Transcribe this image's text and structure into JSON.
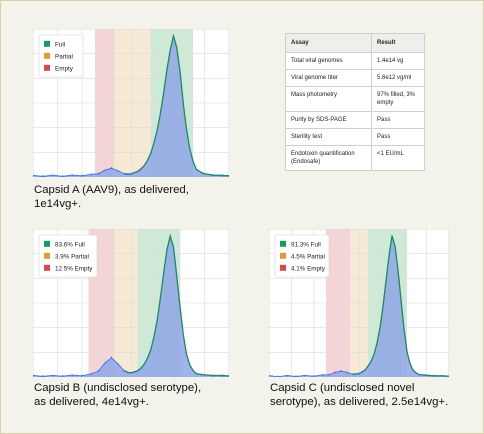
{
  "chart_data": [
    {
      "type": "area",
      "caption": "Capsid A (AAV9), as delivered,\n1e14vg+.",
      "legend": [
        "Full",
        "Partial",
        "Empty"
      ],
      "x": [
        0,
        1.5,
        3,
        4.5,
        6,
        7.5,
        9,
        10,
        11,
        12,
        13,
        14,
        14.5,
        15,
        15.5,
        16,
        16.5,
        17,
        17.5,
        18,
        18.5,
        19,
        19.5,
        20,
        20.5,
        21,
        21.5,
        22,
        22.5,
        23,
        23.5,
        24,
        24.5,
        25,
        26,
        27.5,
        29,
        30
      ],
      "values": [
        0.8,
        0.8,
        0.9,
        0.8,
        1.0,
        1.2,
        1.6,
        2.6,
        4.5,
        6.5,
        4.2,
        2.4,
        2.0,
        2.2,
        3.0,
        4.0,
        5.5,
        8.0,
        11.5,
        16.5,
        24,
        33,
        45,
        60,
        76,
        90,
        100,
        92,
        75,
        52,
        34,
        20,
        11,
        5.5,
        2.5,
        1.4,
        1.0,
        0.9
      ],
      "bands": [
        {
          "name": "Empty",
          "from": 9.5,
          "to": 12.5
        },
        {
          "name": "Partial",
          "from": 12.5,
          "to": 18
        },
        {
          "name": "Full",
          "from": 18,
          "to": 24.5
        }
      ]
    },
    {
      "type": "area",
      "caption": "Capsid B (undisclosed serotype),\nas delivered, 4e14vg+.",
      "legend": [
        "83.6% Full",
        "3.9% Partial",
        "12.5% Empty"
      ],
      "x": [
        0,
        1.5,
        3,
        4.5,
        6,
        7.5,
        9,
        10,
        11,
        12,
        13,
        14,
        14.5,
        15,
        15.5,
        16,
        16.5,
        17,
        17.5,
        18,
        18.5,
        19,
        19.5,
        20,
        20.5,
        21,
        21.5,
        22,
        22.5,
        23,
        23.5,
        24,
        24.5,
        25,
        26,
        27.5,
        29,
        30
      ],
      "values": [
        0.8,
        0.8,
        0.8,
        0.9,
        1.0,
        1.2,
        2.0,
        4.5,
        9.5,
        14,
        9.0,
        4.5,
        3.2,
        3.0,
        3.5,
        4.5,
        6.0,
        9.0,
        13,
        19,
        28,
        40,
        56,
        74,
        90,
        100,
        92,
        72,
        50,
        30,
        16,
        8.5,
        4.5,
        2.5,
        1.5,
        1.1,
        0.9,
        0.8
      ],
      "bands": [
        {
          "name": "Empty",
          "from": 8.5,
          "to": 12.5
        },
        {
          "name": "Partial",
          "from": 12.5,
          "to": 16
        },
        {
          "name": "Full",
          "from": 16,
          "to": 22.5
        }
      ]
    },
    {
      "type": "area",
      "caption": "Capsid C (undisclosed novel\nserotype), as delivered, 2.5e14vg+.",
      "legend": [
        "91.3% Full",
        "4.5% Partial",
        "4.1% Empty"
      ],
      "x": [
        0,
        1.5,
        3,
        4.5,
        6,
        7.5,
        9,
        10,
        11,
        12,
        13,
        14,
        14.5,
        15,
        15.5,
        16,
        16.5,
        17,
        17.5,
        18,
        18.5,
        19,
        19.5,
        20,
        20.5,
        21,
        21.5,
        22,
        22.5,
        23,
        23.5,
        24,
        24.5,
        25,
        26,
        27.5,
        29,
        30
      ],
      "values": [
        0.6,
        0.6,
        0.7,
        0.7,
        0.8,
        0.9,
        1.2,
        1.8,
        3.0,
        4.5,
        3.0,
        2.2,
        2.0,
        2.5,
        3.5,
        5.0,
        7.5,
        11,
        16,
        24,
        35,
        50,
        68,
        86,
        100,
        93,
        76,
        55,
        34,
        18,
        9.5,
        5.0,
        2.8,
        1.8,
        1.2,
        0.9,
        0.7,
        0.6
      ],
      "bands": [
        {
          "name": "Empty",
          "from": 9.5,
          "to": 13.5
        },
        {
          "name": "Partial",
          "from": 13.5,
          "to": 16.5
        },
        {
          "name": "Full",
          "from": 16.5,
          "to": 23
        }
      ]
    }
  ],
  "table": {
    "headers": [
      "Assay",
      "Result"
    ],
    "rows": [
      [
        "Total viral genomes",
        "1.4e14 vg"
      ],
      [
        "Viral genome titer",
        "5.6e12 vg/ml"
      ],
      [
        "Mass photometry",
        "97% filled, 3%\nempty"
      ],
      [
        "Purity by SDS-PAGE",
        "Pass"
      ],
      [
        "Sterility test",
        "Pass"
      ],
      [
        "Endotoxin quantification\n(Endosafe)",
        "<1 EU/mL"
      ]
    ]
  },
  "colors": {
    "full": "#169c63",
    "partial": "#e19a38",
    "empty": "#d8474f",
    "full_band": "#cfe9d7",
    "partial_band": "#f6ead6",
    "empty_band": "#f4d5d5",
    "fill": "#8fa6e8",
    "line": "#3c74e8",
    "fit": "#1b8f57"
  }
}
